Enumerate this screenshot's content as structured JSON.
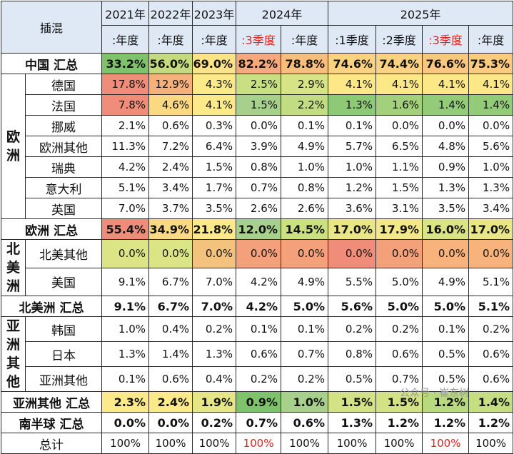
{
  "header": {
    "corner": "插混",
    "years": [
      "2021年",
      "2022年",
      "2023年",
      "2024年",
      "2025年"
    ],
    "periods": [
      ":年度",
      ":年度",
      ":年度",
      ":3季度",
      ":年度",
      ":1季度",
      ":2季度",
      ":3季度",
      ":年度"
    ],
    "period_highlight": [
      false,
      false,
      false,
      true,
      false,
      false,
      false,
      true,
      false
    ]
  },
  "colors": {
    "header_bg": "#dfe9f5",
    "highlight_text": "#e0221e",
    "bright_green": "#7ec36b",
    "green": "#a8d08d",
    "yellow_green": "#dbe585",
    "yellow": "#fbe98a",
    "orange": "#f8c27c",
    "red": "#f08c7a"
  },
  "rows": [
    {
      "group": "",
      "label": "中国 汇总",
      "total": true,
      "values": [
        "33.2%",
        "56.0%",
        "69.0%",
        "82.2%",
        "78.8%",
        "74.6%",
        "74.4%",
        "76.6%",
        "75.3%"
      ],
      "fills": [
        "#7ec36b",
        "#c3db7d",
        "#fde387",
        "#f8a97b",
        "#f9bd7c",
        "#fbd27f",
        "#fbd27f",
        "#fbc77e",
        "#fbcb7e"
      ]
    },
    {
      "group": "欧洲",
      "label": "德国",
      "values": [
        "17.8%",
        "12.9%",
        "4.3%",
        "2.5%",
        "2.9%",
        "4.1%",
        "4.1%",
        "4.1%",
        "4.1%"
      ],
      "fills": [
        "#f08c7a",
        "#f6b07c",
        "#fbe98a",
        "#c8df82",
        "#d7e485",
        "#fde888",
        "#fde888",
        "#fde888",
        "#fde888"
      ]
    },
    {
      "group": "欧洲",
      "label": "法国",
      "values": [
        "7.8%",
        "4.6%",
        "4.1%",
        "1.5%",
        "2.2%",
        "1.3%",
        "1.6%",
        "1.4%",
        "1.4%"
      ],
      "fills": [
        "#f08c7a",
        "#fbd983",
        "#fbe98a",
        "#a8d08d",
        "#c1dc82",
        "#8ec975",
        "#a3d07b",
        "#94cb78",
        "#94cb78"
      ]
    },
    {
      "group": "欧洲",
      "label": "挪威",
      "values": [
        "2.1%",
        "0.6%",
        "0.3%",
        "0.0%",
        "0.1%",
        "0.1%",
        "0.0%",
        "0.0%",
        "0.0%"
      ],
      "fills": []
    },
    {
      "group": "欧洲",
      "label": "欧洲其他",
      "values": [
        "11.3%",
        "7.2%",
        "6.4%",
        "3.9%",
        "4.9%",
        "5.7%",
        "6.5%",
        "4.8%",
        "5.6%"
      ],
      "fills": []
    },
    {
      "group": "欧洲",
      "label": "瑞典",
      "values": [
        "4.2%",
        "2.4%",
        "1.5%",
        "0.8%",
        "1.0%",
        "1.0%",
        "1.1%",
        "0.9%",
        "1.0%"
      ],
      "fills": []
    },
    {
      "group": "欧洲",
      "label": "意大利",
      "values": [
        "5.1%",
        "3.4%",
        "1.7%",
        "0.7%",
        "0.8%",
        "1.2%",
        "1.5%",
        "1.3%",
        "1.3%"
      ],
      "fills": []
    },
    {
      "group": "欧洲",
      "label": "英国",
      "values": [
        "7.0%",
        "3.7%",
        "3.5%",
        "2.6%",
        "2.6%",
        "3.6%",
        "3.1%",
        "3.5%",
        "3.4%"
      ],
      "fills": []
    },
    {
      "group": "",
      "label": "欧洲 汇总",
      "total": true,
      "values": [
        "55.4%",
        "34.9%",
        "21.8%",
        "12.0%",
        "14.5%",
        "17.0%",
        "17.9%",
        "16.0%",
        "17.0%"
      ],
      "fills": [
        "#f08c7a",
        "#fbd983",
        "#fbe98a",
        "#a8d08d",
        "#cbe07f",
        "#e9e685",
        "#f3e887",
        "#d9e483",
        "#e9e685"
      ]
    },
    {
      "group": "北美洲",
      "label": "北美其他",
      "values": [
        "0.0%",
        "0.0%",
        "0.0%",
        "0.0%",
        "0.0%",
        "0.0%",
        "0.0%",
        "0.0%",
        "0.0%"
      ],
      "fills": [
        "#dbe585",
        "#dbe585",
        "#f3c27c",
        "#f4a07a",
        "#f4a07a",
        "#f08c7a",
        "#f4a07a",
        "#f8b37c",
        "#f8b37c"
      ]
    },
    {
      "group": "北美洲",
      "label": "美国",
      "values": [
        "9.1%",
        "6.7%",
        "7.0%",
        "4.2%",
        "4.9%",
        "5.5%",
        "5.0%",
        "4.9%",
        "5.1%"
      ],
      "fills": []
    },
    {
      "group": "",
      "label": "北美洲 汇总",
      "total": true,
      "values": [
        "9.1%",
        "6.7%",
        "7.0%",
        "4.2%",
        "5.0%",
        "5.6%",
        "5.0%",
        "5.0%",
        "5.1%"
      ],
      "fills": []
    },
    {
      "group": "亚洲其他",
      "label": "韩国",
      "values": [
        "1.0%",
        "0.4%",
        "0.2%",
        "0.1%",
        "0.1%",
        "0.2%",
        "0.2%",
        "0.1%",
        "0.2%"
      ],
      "fills": []
    },
    {
      "group": "亚洲其他",
      "label": "日本",
      "values": [
        "1.3%",
        "1.4%",
        "1.3%",
        "0.6%",
        "0.7%",
        "0.8%",
        "0.6%",
        "0.5%",
        "0.6%"
      ],
      "fills": []
    },
    {
      "group": "亚洲其他",
      "label": "亚洲其他",
      "values": [
        "0.1%",
        "0.6%",
        "0.4%",
        "0.2%",
        "0.2%",
        "0.5%",
        "0.7%",
        "0.5%",
        "0.6%"
      ],
      "fills": []
    },
    {
      "group": "",
      "label": "亚洲其他 汇总",
      "total": true,
      "values": [
        "2.3%",
        "2.4%",
        "1.9%",
        "0.9%",
        "1.0%",
        "1.5%",
        "1.5%",
        "1.2%",
        "1.4%"
      ],
      "fills": [
        "#fbe98a",
        "#fbe98a",
        "#e6e686",
        "#7ec36b",
        "#a8d08d",
        "#d2e284",
        "#d2e284",
        "#b9d97f",
        "#c6de82"
      ]
    },
    {
      "group": "",
      "label": "南半球 汇总",
      "total": true,
      "values": [
        "0.0%",
        "0.0%",
        "0.2%",
        "0.7%",
        "0.6%",
        "1.3%",
        "1.2%",
        "1.2%",
        "1.2%"
      ],
      "fills": []
    },
    {
      "group": "",
      "label": "总计",
      "sum": true,
      "values": [
        "100%",
        "100%",
        "100%",
        "100%",
        "100%",
        "100%",
        "100%",
        "100%",
        "100%"
      ],
      "highlight": [
        false,
        false,
        false,
        true,
        false,
        false,
        false,
        true,
        false
      ]
    }
  ],
  "groups": {
    "europe": "欧洲",
    "north_america": "北美洲",
    "asia_other": "亚洲其他"
  },
  "watermark": "公众号 · 崔东树"
}
